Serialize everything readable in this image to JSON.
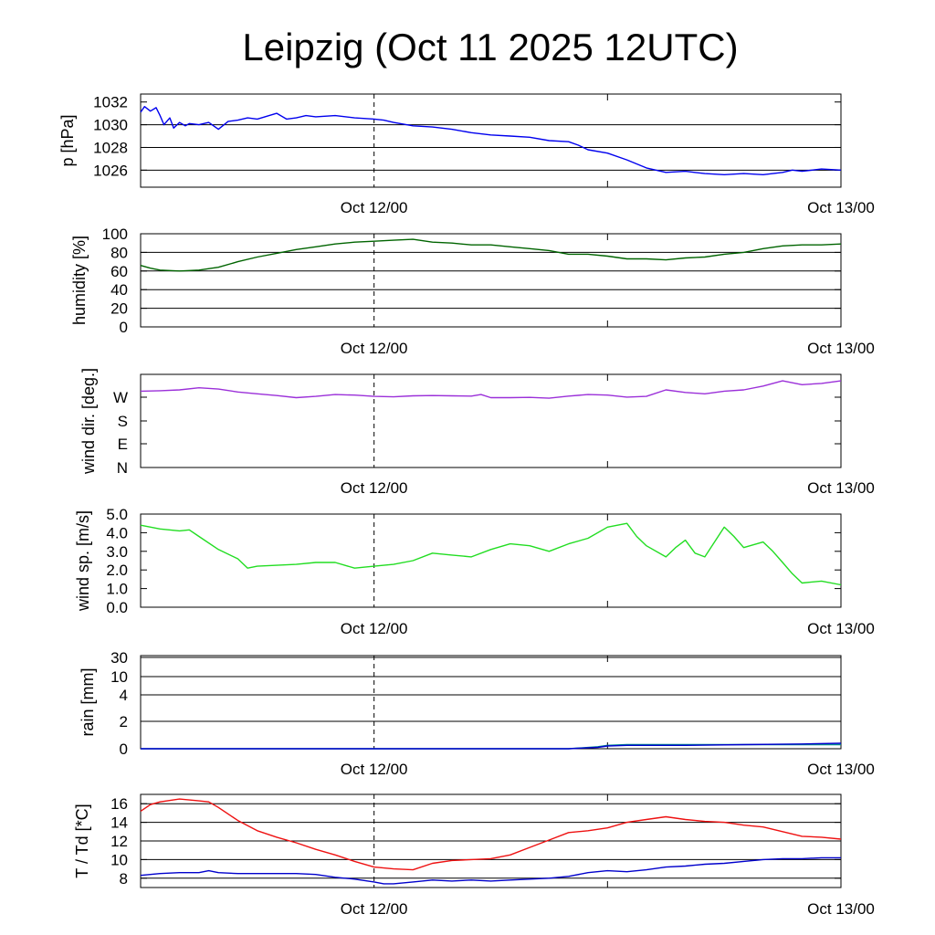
{
  "title": "Leipzig (Oct 11 2025 12UTC)",
  "colors": {
    "pressure": "#0000ee",
    "humidity": "#006400",
    "wind_dir": "#9b30d9",
    "wind_speed": "#22dd22",
    "rain_a": "#0000cc",
    "rain_b": "#008b8b",
    "temperature": "#ee1111",
    "dewpoint": "#0000cc"
  },
  "chart_data": [
    {
      "type": "line",
      "ylabel": "p [hPa]",
      "x_ticks": [
        "Oct 12/00",
        "Oct 13/00"
      ],
      "y_ticks": [
        "1032",
        "1030",
        "1028",
        "1026"
      ],
      "y_grid": [
        1030,
        1028,
        1026
      ],
      "ylim": [
        1024.5,
        1032.7
      ],
      "x_range_hours": [
        0,
        36
      ],
      "series": [
        {
          "color_key": "pressure",
          "x": [
            0,
            0.2,
            0.5,
            0.8,
            1,
            1.2,
            1.5,
            1.7,
            2,
            2.3,
            2.5,
            3,
            3.5,
            4,
            4.5,
            5,
            5.5,
            6,
            7,
            7.5,
            8,
            8.5,
            9,
            10,
            11,
            12,
            12.5,
            13,
            14,
            15,
            16,
            17,
            18,
            19,
            20,
            21,
            22,
            22.5,
            23,
            24,
            25,
            26,
            27,
            28,
            29,
            30,
            31,
            32,
            33,
            33.5,
            34,
            35,
            36
          ],
          "y": [
            1031.1,
            1031.6,
            1031.2,
            1031.5,
            1030.8,
            1030.0,
            1030.6,
            1029.7,
            1030.2,
            1029.9,
            1030.1,
            1030.0,
            1030.2,
            1029.6,
            1030.3,
            1030.4,
            1030.6,
            1030.5,
            1031.0,
            1030.5,
            1030.6,
            1030.8,
            1030.7,
            1030.8,
            1030.6,
            1030.5,
            1030.4,
            1030.2,
            1029.9,
            1029.8,
            1029.6,
            1029.3,
            1029.1,
            1029.0,
            1028.9,
            1028.6,
            1028.5,
            1028.2,
            1027.8,
            1027.5,
            1026.9,
            1026.2,
            1025.8,
            1025.9,
            1025.7,
            1025.6,
            1025.7,
            1025.6,
            1025.8,
            1026.0,
            1025.9,
            1026.1,
            1026.0
          ]
        }
      ]
    },
    {
      "type": "line",
      "ylabel": "humidity [%]",
      "x_ticks": [
        "Oct 12/00",
        "Oct 13/00"
      ],
      "y_ticks": [
        "100",
        "80",
        "60",
        "40",
        "20",
        "0"
      ],
      "y_grid": [
        100,
        80,
        60,
        40,
        20
      ],
      "ylim": [
        0,
        100
      ],
      "x_range_hours": [
        0,
        36
      ],
      "series": [
        {
          "color_key": "humidity",
          "x": [
            0,
            0.5,
            1,
            2,
            3,
            4,
            5,
            6,
            7,
            8,
            9,
            10,
            11,
            12,
            13,
            14,
            15,
            16,
            17,
            18,
            19,
            20,
            21,
            22,
            23,
            24,
            25,
            26,
            27,
            28,
            29,
            30,
            31,
            32,
            33,
            34,
            35,
            36
          ],
          "y": [
            66,
            63,
            61,
            60,
            61,
            64,
            70,
            75,
            79,
            83,
            86,
            89,
            91,
            92,
            93,
            94,
            91,
            90,
            88,
            88,
            86,
            84,
            82,
            78,
            78,
            76,
            73,
            73,
            72,
            74,
            75,
            78,
            80,
            84,
            87,
            88,
            88,
            89
          ]
        }
      ]
    },
    {
      "type": "line",
      "ylabel": "wind dir. [deg.]",
      "x_ticks": [
        "Oct 12/00",
        "Oct 13/00"
      ],
      "y_ticks": [
        "W",
        "S",
        "E",
        "N"
      ],
      "y_tick_values": [
        270,
        180,
        90,
        0
      ],
      "ylim": [
        0,
        360
      ],
      "x_range_hours": [
        0,
        36
      ],
      "series": [
        {
          "color_key": "wind_dir",
          "x": [
            0,
            1,
            2,
            3,
            4,
            5,
            6,
            7,
            8,
            9,
            10,
            11,
            12,
            13,
            14,
            15,
            16,
            17,
            17.5,
            18,
            19,
            20,
            21,
            22,
            23,
            24,
            25,
            26,
            27,
            28,
            29,
            30,
            31,
            32,
            33,
            34,
            35,
            36
          ],
          "y": [
            295,
            297,
            300,
            308,
            303,
            292,
            285,
            278,
            270,
            275,
            282,
            280,
            275,
            273,
            277,
            278,
            277,
            276,
            282,
            270,
            270,
            271,
            268,
            276,
            282,
            280,
            272,
            275,
            300,
            290,
            285,
            295,
            300,
            315,
            335,
            320,
            325,
            335
          ]
        }
      ]
    },
    {
      "type": "line",
      "ylabel": "wind sp. [m/s]",
      "x_ticks": [
        "Oct 12/00",
        "Oct 13/00"
      ],
      "y_ticks": [
        "5.0",
        "4.0",
        "3.0",
        "2.0",
        "1.0",
        "0.0"
      ],
      "ylim": [
        0,
        5
      ],
      "x_range_hours": [
        0,
        36
      ],
      "series": [
        {
          "color_key": "wind_speed",
          "x": [
            0,
            1,
            2,
            2.5,
            3,
            4,
            5,
            5.5,
            6,
            7,
            8,
            9,
            10,
            11,
            12,
            13,
            14,
            15,
            16,
            17,
            18,
            19,
            20,
            21,
            22,
            23,
            24,
            25,
            25.5,
            26,
            27,
            27.5,
            28,
            28.5,
            29,
            30,
            30.5,
            31,
            32,
            32.5,
            33,
            33.5,
            34,
            35,
            36
          ],
          "y": [
            4.4,
            4.2,
            4.1,
            4.15,
            3.8,
            3.1,
            2.6,
            2.1,
            2.2,
            2.25,
            2.3,
            2.4,
            2.4,
            2.1,
            2.2,
            2.3,
            2.5,
            2.9,
            2.8,
            2.7,
            3.1,
            3.4,
            3.3,
            3.0,
            3.4,
            3.7,
            4.3,
            4.5,
            3.8,
            3.3,
            2.7,
            3.2,
            3.6,
            2.9,
            2.7,
            4.3,
            3.8,
            3.2,
            3.5,
            3.0,
            2.4,
            1.8,
            1.3,
            1.4,
            1.2
          ]
        }
      ]
    },
    {
      "type": "line",
      "ylabel": "rain [mm]",
      "x_ticks": [
        "Oct 12/00",
        "Oct 13/00"
      ],
      "y_ticks": [
        "30",
        "10",
        "4",
        "2",
        "0"
      ],
      "y_tick_values": [
        30,
        10,
        4,
        2,
        0
      ],
      "y_scale": "nonlinear",
      "ylim": [
        0,
        30
      ],
      "x_range_hours": [
        0,
        36
      ],
      "series": [
        {
          "color_key": "rain_b",
          "x": [
            0,
            20,
            22,
            23.5,
            24,
            25,
            36
          ],
          "y": [
            0,
            0,
            0,
            0.15,
            0.25,
            0.3,
            0.3
          ]
        },
        {
          "color_key": "rain_a",
          "x": [
            0,
            22,
            23.5,
            24,
            25,
            28,
            31,
            34,
            36
          ],
          "y": [
            0,
            0,
            0.1,
            0.2,
            0.25,
            0.25,
            0.3,
            0.35,
            0.4
          ]
        }
      ]
    },
    {
      "type": "line",
      "ylabel": "T / Td [*C]",
      "x_ticks": [
        "Oct 12/00",
        "Oct 13/00"
      ],
      "y_ticks": [
        "16",
        "14",
        "12",
        "10",
        "8"
      ],
      "y_grid": [
        16,
        14,
        12,
        10,
        8
      ],
      "ylim": [
        7,
        17
      ],
      "x_range_hours": [
        0,
        36
      ],
      "series": [
        {
          "color_key": "temperature",
          "x": [
            0,
            0.5,
            1,
            2,
            2.5,
            3,
            3.5,
            4,
            5,
            6,
            7,
            8,
            9,
            10,
            11,
            12,
            13,
            14,
            15,
            16,
            17,
            18,
            19,
            20,
            21,
            22,
            23,
            24,
            25,
            26,
            27,
            28,
            29,
            30,
            31,
            32,
            33,
            34,
            35,
            36
          ],
          "y": [
            15.2,
            15.9,
            16.2,
            16.5,
            16.4,
            16.3,
            16.2,
            15.6,
            14.2,
            13.1,
            12.4,
            11.8,
            11.1,
            10.5,
            9.8,
            9.2,
            9.0,
            8.9,
            9.6,
            9.9,
            10.0,
            10.1,
            10.5,
            11.3,
            12.1,
            12.9,
            13.1,
            13.4,
            14.0,
            14.3,
            14.6,
            14.3,
            14.1,
            14.0,
            13.7,
            13.5,
            13.0,
            12.5,
            12.4,
            12.2
          ]
        },
        {
          "color_key": "dewpoint",
          "x": [
            0,
            1,
            2,
            3,
            3.5,
            4,
            5,
            6,
            7,
            8,
            9,
            10,
            11,
            12,
            12.5,
            13,
            14,
            15,
            16,
            17,
            18,
            19,
            20,
            21,
            22,
            23,
            24,
            25,
            26,
            27,
            28,
            29,
            30,
            31,
            32,
            33,
            34,
            35,
            36
          ],
          "y": [
            8.3,
            8.5,
            8.6,
            8.6,
            8.8,
            8.6,
            8.5,
            8.5,
            8.5,
            8.5,
            8.4,
            8.1,
            7.9,
            7.6,
            7.4,
            7.4,
            7.6,
            7.8,
            7.7,
            7.8,
            7.7,
            7.8,
            7.9,
            8.0,
            8.2,
            8.6,
            8.8,
            8.7,
            8.9,
            9.2,
            9.3,
            9.5,
            9.6,
            9.8,
            10.0,
            10.1,
            10.1,
            10.2,
            10.2
          ]
        }
      ]
    }
  ]
}
